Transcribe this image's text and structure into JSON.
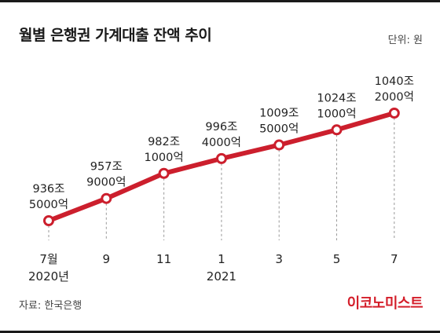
{
  "header": {
    "title": "월별 은행권 가계대출 잔액 추이",
    "unit": "단위: 원"
  },
  "footer": {
    "source": "자료: 한국은행",
    "brand": "이코노미스트"
  },
  "colors": {
    "line": "#cc1f2d",
    "marker_fill": "#ffffff",
    "guide": "#9a9a9a"
  },
  "chart_data": {
    "type": "line",
    "title": "월별 은행권 가계대출 잔액 추이",
    "unit": "단위: 원",
    "x_tick_labels": [
      "7월",
      "9",
      "11",
      "1",
      "3",
      "5",
      "7"
    ],
    "x_year_labels": [
      "2020년",
      "",
      "",
      "2021",
      "",
      "",
      ""
    ],
    "x": [
      "2020-07",
      "2020-09",
      "2020-11",
      "2021-01",
      "2021-03",
      "2021-05",
      "2021-07"
    ],
    "series": [
      {
        "values": [
          9365000,
          9579000,
          9821000,
          9964000,
          10095000,
          10241000,
          10402000
        ],
        "labels": [
          [
            "936조",
            "5000억"
          ],
          [
            "957조",
            "9000억"
          ],
          [
            "982조",
            "1000억"
          ],
          [
            "996조",
            "4000억"
          ],
          [
            "1009조",
            "5000억"
          ],
          [
            "1024조",
            "1000억"
          ],
          [
            "1040조",
            "2000억"
          ]
        ]
      }
    ],
    "grid": false,
    "legend": "none"
  }
}
